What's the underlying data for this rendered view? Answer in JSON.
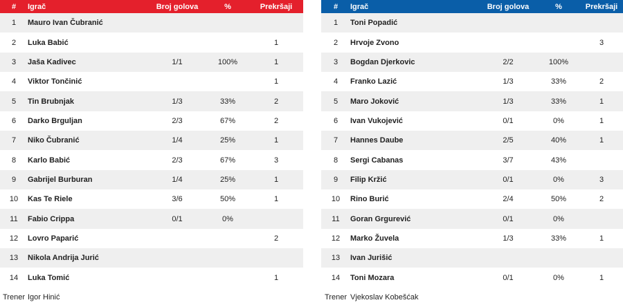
{
  "headers": {
    "num": "#",
    "player": "Igrač",
    "goals": "Broj golova",
    "pct": "%",
    "fouls": "Prekršaji"
  },
  "colors": {
    "home_header": "#e4202c",
    "away_header": "#0a5ea8"
  },
  "home": {
    "players": [
      {
        "num": "1",
        "name": "Mauro Ivan Čubranić",
        "goals": "",
        "pct": "",
        "fouls": ""
      },
      {
        "num": "2",
        "name": "Luka Babić",
        "goals": "",
        "pct": "",
        "fouls": "1"
      },
      {
        "num": "3",
        "name": "Jaša Kadivec",
        "goals": "1/1",
        "pct": "100%",
        "fouls": "1"
      },
      {
        "num": "4",
        "name": "Viktor Tončinić",
        "goals": "",
        "pct": "",
        "fouls": "1"
      },
      {
        "num": "5",
        "name": "Tin Brubnjak",
        "goals": "1/3",
        "pct": "33%",
        "fouls": "2"
      },
      {
        "num": "6",
        "name": "Darko Brguljan",
        "goals": "2/3",
        "pct": "67%",
        "fouls": "2"
      },
      {
        "num": "7",
        "name": "Niko Čubranić",
        "goals": "1/4",
        "pct": "25%",
        "fouls": "1"
      },
      {
        "num": "8",
        "name": "Karlo Babić",
        "goals": "2/3",
        "pct": "67%",
        "fouls": "3"
      },
      {
        "num": "9",
        "name": "Gabrijel Burburan",
        "goals": "1/4",
        "pct": "25%",
        "fouls": "1"
      },
      {
        "num": "10",
        "name": "Kas Te Riele",
        "goals": "3/6",
        "pct": "50%",
        "fouls": "1"
      },
      {
        "num": "11",
        "name": "Fabio Crippa",
        "goals": "0/1",
        "pct": "0%",
        "fouls": ""
      },
      {
        "num": "12",
        "name": "Lovro Paparić",
        "goals": "",
        "pct": "",
        "fouls": "2"
      },
      {
        "num": "13",
        "name": "Nikola Andrija Jurić",
        "goals": "",
        "pct": "",
        "fouls": ""
      },
      {
        "num": "14",
        "name": "Luka Tomić",
        "goals": "",
        "pct": "",
        "fouls": "1"
      }
    ],
    "coach_label": "Trener",
    "coach_name": "Igor Hinić"
  },
  "away": {
    "players": [
      {
        "num": "1",
        "name": "Toni Popadić",
        "goals": "",
        "pct": "",
        "fouls": ""
      },
      {
        "num": "2",
        "name": "Hrvoje Zvono",
        "goals": "",
        "pct": "",
        "fouls": "3"
      },
      {
        "num": "3",
        "name": "Bogdan Djerkovic",
        "goals": "2/2",
        "pct": "100%",
        "fouls": ""
      },
      {
        "num": "4",
        "name": "Franko Lazić",
        "goals": "1/3",
        "pct": "33%",
        "fouls": "2"
      },
      {
        "num": "5",
        "name": "Maro Joković",
        "goals": "1/3",
        "pct": "33%",
        "fouls": "1"
      },
      {
        "num": "6",
        "name": "Ivan Vukojević",
        "goals": "0/1",
        "pct": "0%",
        "fouls": "1"
      },
      {
        "num": "7",
        "name": "Hannes Daube",
        "goals": "2/5",
        "pct": "40%",
        "fouls": "1"
      },
      {
        "num": "8",
        "name": "Sergi Cabanas",
        "goals": "3/7",
        "pct": "43%",
        "fouls": ""
      },
      {
        "num": "9",
        "name": "Filip Kržić",
        "goals": "0/1",
        "pct": "0%",
        "fouls": "3"
      },
      {
        "num": "10",
        "name": "Rino Burić",
        "goals": "2/4",
        "pct": "50%",
        "fouls": "2"
      },
      {
        "num": "11",
        "name": "Goran Grgurević",
        "goals": "0/1",
        "pct": "0%",
        "fouls": ""
      },
      {
        "num": "12",
        "name": "Marko Žuvela",
        "goals": "1/3",
        "pct": "33%",
        "fouls": "1"
      },
      {
        "num": "13",
        "name": "Ivan Jurišić",
        "goals": "",
        "pct": "",
        "fouls": ""
      },
      {
        "num": "14",
        "name": "Toni Mozara",
        "goals": "0/1",
        "pct": "0%",
        "fouls": "1"
      }
    ],
    "coach_label": "Trener",
    "coach_name": "Vjekoslav Kobešćak"
  }
}
